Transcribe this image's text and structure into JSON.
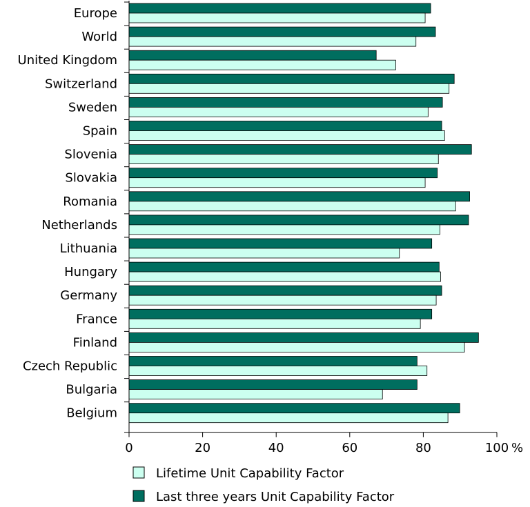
{
  "chart_data": {
    "type": "bar",
    "orientation": "horizontal",
    "categories": [
      "Europe",
      "World",
      "United Kingdom",
      "Switzerland",
      "Sweden",
      "Spain",
      "Slovenia",
      "Slovakia",
      "Romania",
      "Netherlands",
      "Lithuania",
      "Hungary",
      "Germany",
      "France",
      "Finland",
      "Czech Republic",
      "Bulgaria",
      "Belgium"
    ],
    "series": [
      {
        "name": "Last three years Unit Capability Factor",
        "color": "#006e5f",
        "values": [
          82.0,
          83.3,
          67.2,
          88.4,
          85.2,
          85.0,
          93.1,
          83.8,
          92.6,
          92.3,
          82.3,
          84.3,
          85.0,
          82.3,
          95.0,
          78.3,
          78.3,
          89.9
        ]
      },
      {
        "name": "Lifetime Unit Capability Factor",
        "color": "#ccfff0",
        "values": [
          80.5,
          78.0,
          72.5,
          87.0,
          81.3,
          85.8,
          84.1,
          80.5,
          88.8,
          84.5,
          73.5,
          84.7,
          83.5,
          79.2,
          91.2,
          81.0,
          68.9,
          86.7
        ]
      }
    ],
    "xlim": [
      0,
      100
    ],
    "xticks": [
      "0",
      "20",
      "40",
      "60",
      "80",
      "100"
    ],
    "xunit": "%",
    "grid": false,
    "legend_position": "bottom",
    "legend_order": [
      "Lifetime Unit Capability Factor",
      "Last three years Unit Capability Factor"
    ]
  }
}
